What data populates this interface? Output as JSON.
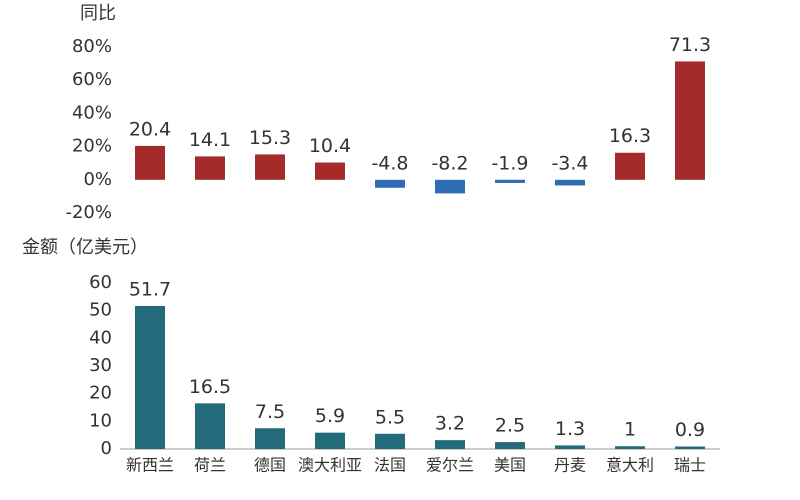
{
  "chart_data": [
    {
      "type": "bar",
      "title": "同比",
      "values": [
        20.4,
        14.1,
        15.3,
        10.4,
        -4.8,
        -8.2,
        -1.9,
        -3.4,
        16.3,
        71.3
      ],
      "color": "#a52a2a",
      "negative_color": "#2e6db4",
      "ylim": [
        -20,
        80
      ],
      "yticks": [
        {
          "value": -20,
          "label": "-20%"
        },
        {
          "value": 0,
          "label": "0%"
        },
        {
          "value": 20,
          "label": "20%"
        },
        {
          "value": 40,
          "label": "40%"
        },
        {
          "value": 60,
          "label": "60%"
        },
        {
          "value": 80,
          "label": "80%"
        }
      ],
      "axis_line": false
    },
    {
      "type": "bar",
      "title": "金额（亿美元）",
      "categories": [
        "新西兰",
        "荷兰",
        "德国",
        "澳大利亚",
        "法国",
        "爱尔兰",
        "美国",
        "丹麦",
        "意大利",
        "瑞士"
      ],
      "values": [
        51.7,
        16.5,
        7.5,
        5.9,
        5.5,
        3.2,
        2.5,
        1.3,
        1,
        0.9
      ],
      "color": "#236b7a",
      "ylim": [
        0,
        60
      ],
      "yticks": [
        0,
        10,
        20,
        30,
        40,
        50,
        60
      ],
      "axis_line": true
    }
  ]
}
